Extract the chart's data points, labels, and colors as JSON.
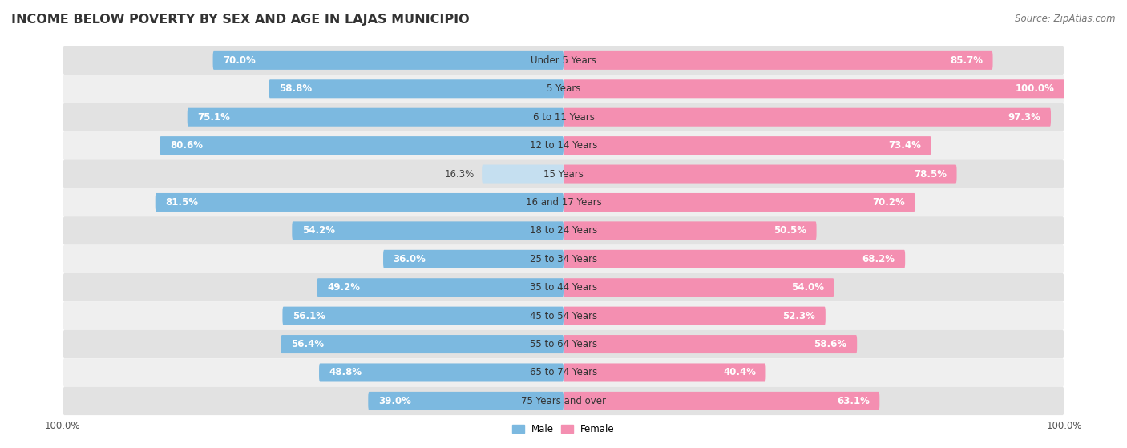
{
  "title": "INCOME BELOW POVERTY BY SEX AND AGE IN LAJAS MUNICIPIO",
  "source": "Source: ZipAtlas.com",
  "categories": [
    "Under 5 Years",
    "5 Years",
    "6 to 11 Years",
    "12 to 14 Years",
    "15 Years",
    "16 and 17 Years",
    "18 to 24 Years",
    "25 to 34 Years",
    "35 to 44 Years",
    "45 to 54 Years",
    "55 to 64 Years",
    "65 to 74 Years",
    "75 Years and over"
  ],
  "male_values": [
    70.0,
    58.8,
    75.1,
    80.6,
    16.3,
    81.5,
    54.2,
    36.0,
    49.2,
    56.1,
    56.4,
    48.8,
    39.0
  ],
  "female_values": [
    85.7,
    100.0,
    97.3,
    73.4,
    78.5,
    70.2,
    50.5,
    68.2,
    54.0,
    52.3,
    58.6,
    40.4,
    63.1
  ],
  "male_color": "#7cb9e0",
  "female_color": "#f48fb1",
  "male_light_color": "#c5dff0",
  "female_light_color": "#fad4e0",
  "male_label": "Male",
  "female_label": "Female",
  "row_bg_dark": "#e2e2e2",
  "row_bg_light": "#efefef",
  "max_value": 100.0,
  "title_fontsize": 11.5,
  "source_fontsize": 8.5,
  "label_fontsize": 8.5,
  "cat_fontsize": 8.5,
  "tick_fontsize": 8.5
}
